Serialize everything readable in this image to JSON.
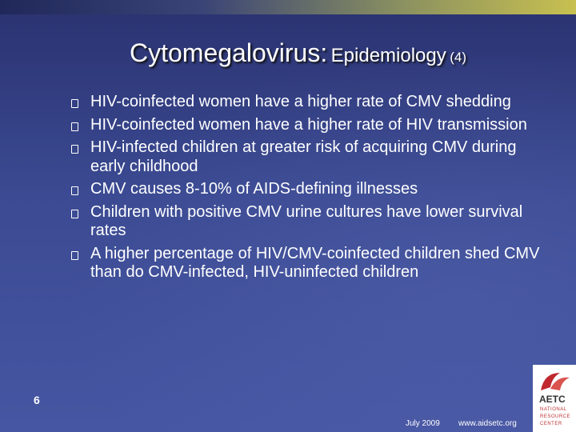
{
  "slide": {
    "title": {
      "main": "Cytomegalovirus:",
      "sub": "Epidemiology",
      "part": "(4)"
    },
    "bullets": [
      "HIV-coinfected women have a higher rate of CMV shedding",
      "HIV-coinfected women have a higher rate of HIV transmission",
      "HIV-infected children at greater risk of acquiring CMV during early childhood",
      "CMV causes 8-10% of AIDS-defining illnesses",
      "Children with positive CMV urine cultures have lower survival rates",
      "A higher percentage of HIV/CMV-coinfected children shed CMV than do CMV-infected, HIV-uninfected children"
    ],
    "footer": {
      "page_number": "6",
      "date": "July 2009",
      "url": "www.aidsetc.org"
    },
    "logo": {
      "name": "AETC",
      "line1": "NATIONAL",
      "line2": "RESOURCE",
      "line3": "CENTER"
    }
  }
}
